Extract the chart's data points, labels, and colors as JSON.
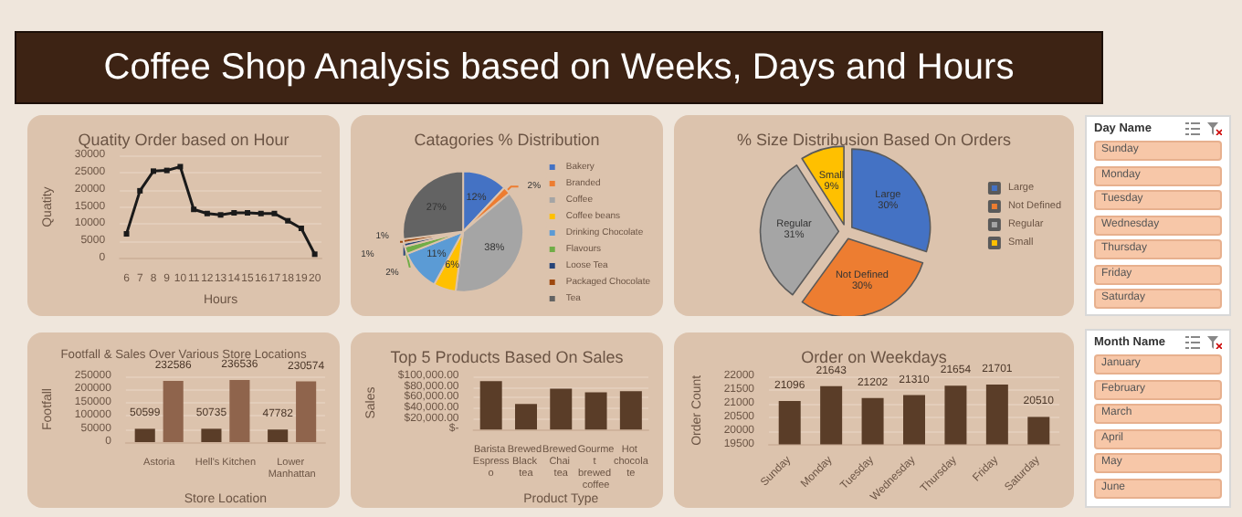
{
  "chart_data": [
    {
      "type": "other",
      "title": "Coffee Shop Analysis based on Weeks, Days and Hours"
    },
    {
      "type": "line",
      "title": "Quatity Order based on Hour",
      "xlabel": "Hours",
      "ylabel": "Quatity",
      "categories": [
        "6",
        "7",
        "8",
        "9",
        "10",
        "11",
        "12",
        "13",
        "14",
        "15",
        "16",
        "17",
        "18",
        "19",
        "20"
      ],
      "values": [
        7200,
        19700,
        25400,
        25600,
        26700,
        14300,
        13100,
        12700,
        13300,
        13300,
        13100,
        13100,
        11000,
        8800,
        1300
      ],
      "color": "#1a1a1a",
      "ylim": [
        0,
        30000
      ],
      "yticks": [
        0,
        5000,
        10000,
        15000,
        20000,
        25000,
        30000
      ],
      "grid": "y",
      "marker": "square",
      "line_style": "solid"
    },
    {
      "type": "pie",
      "title": "Catagories % Distribution",
      "categories": [
        "Bakery",
        "Branded",
        "Coffee",
        "Coffee beans",
        "Drinking Chocolate",
        "Flavours",
        "Loose Tea",
        "Packaged Chocolate",
        "Tea"
      ],
      "values": [
        12,
        2,
        38,
        6,
        11,
        2,
        1,
        1,
        27
      ],
      "colors": [
        "#4472c4",
        "#ed7d31",
        "#a5a5a5",
        "#ffc000",
        "#5b9bd5",
        "#70ad47",
        "#264478",
        "#9e480e",
        "#636363"
      ],
      "value_labels": [
        "12%",
        "2%",
        "38%",
        "6%",
        "11%",
        "2%",
        "1%",
        "1%",
        "27%"
      ],
      "legend": "right"
    },
    {
      "type": "pie",
      "title": "% Size Distribusion Based On Orders",
      "categories": [
        "Large",
        "Not Defined",
        "Regular",
        "Small"
      ],
      "values": [
        30,
        30,
        31,
        9
      ],
      "colors": [
        "#4472c4",
        "#ed7d31",
        "#a5a5a5",
        "#ffc000"
      ],
      "value_labels": [
        "30%",
        "30%",
        "31%",
        "9%"
      ],
      "legend": "right"
    },
    {
      "type": "bar",
      "title": "Footfall & Sales Over Various Store Locations",
      "xlabel": "Store Location",
      "ylabel": "Footfall",
      "categories": [
        "Astoria",
        "Hell's Kitchen",
        "Lower Manhattan"
      ],
      "series": [
        {
          "color": "#5a3d28",
          "values": [
            50599,
            50735,
            47782
          ]
        },
        {
          "color": "#8f644c",
          "values": [
            232586,
            236536,
            230574
          ]
        }
      ],
      "ylim": [
        0,
        250000
      ],
      "yticks": [
        0,
        50000,
        100000,
        150000,
        200000,
        250000
      ],
      "grid": "y",
      "data_labels": true
    },
    {
      "type": "bar",
      "title": "Top 5 Products Based On Sales",
      "xlabel": "Product Type",
      "ylabel": "Sales",
      "categories": [
        "Barista Espresso",
        "Brewed Black tea",
        "Brewed Chai tea",
        "Gourmet brewed coffee",
        "Hot chocolate"
      ],
      "values": [
        91000,
        48000,
        77000,
        70000,
        72000
      ],
      "color": "#5a3d28",
      "ylim": [
        0,
        100000
      ],
      "yticks": [
        {
          "value": 0,
          "label": "$-"
        },
        {
          "value": 20000,
          "label": "$20,000.00"
        },
        {
          "value": 40000,
          "label": "$40,000.00"
        },
        {
          "value": 60000,
          "label": "$60,000.00"
        },
        {
          "value": 80000,
          "label": "$80,000.00"
        },
        {
          "value": 100000,
          "label": "$100,000.00"
        }
      ],
      "grid": "y"
    },
    {
      "type": "bar",
      "title": "Order on Weekdays",
      "ylabel": "Order Count",
      "categories": [
        "Sunday",
        "Monday",
        "Tuesday",
        "Wednesday",
        "Thursday",
        "Friday",
        "Saturday"
      ],
      "values": [
        21096,
        21643,
        21202,
        21310,
        21654,
        21701,
        20510
      ],
      "color": "#5a3d28",
      "ylim": [
        19500,
        22000
      ],
      "yticks": [
        19500,
        20000,
        20500,
        21000,
        21500,
        22000
      ],
      "grid": "y",
      "data_labels": true
    },
    {
      "type": "other",
      "title": "Day Name",
      "categories": [
        "Sunday",
        "Monday",
        "Tuesday",
        "Wednesday",
        "Thursday",
        "Friday",
        "Saturday"
      ]
    },
    {
      "type": "other",
      "title": "Month Name",
      "categories": [
        "January",
        "February",
        "March",
        "April",
        "May",
        "June"
      ]
    }
  ]
}
